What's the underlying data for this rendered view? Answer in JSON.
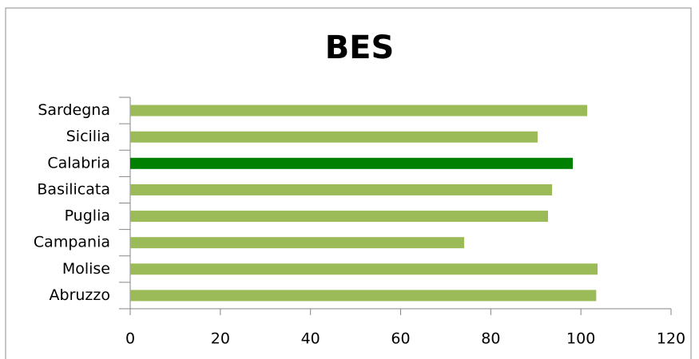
{
  "chart_data": {
    "type": "bar",
    "orientation": "horizontal",
    "title": "BES",
    "categories": [
      "Sardegna",
      "Sicilia",
      "Calabria",
      "Basilicata",
      "Puglia",
      "Campania",
      "Molise",
      "Abruzzo"
    ],
    "values": [
      101.4,
      90.4,
      98.2,
      93.6,
      92.7,
      74.1,
      103.7,
      103.4
    ],
    "colors": [
      "#9bbb59",
      "#9bbb59",
      "#008000",
      "#9bbb59",
      "#9bbb59",
      "#9bbb59",
      "#9bbb59",
      "#9bbb59"
    ],
    "xlim": [
      0,
      120
    ],
    "xticks": [
      0,
      20,
      40,
      60,
      80,
      100,
      120
    ],
    "grid": false
  }
}
